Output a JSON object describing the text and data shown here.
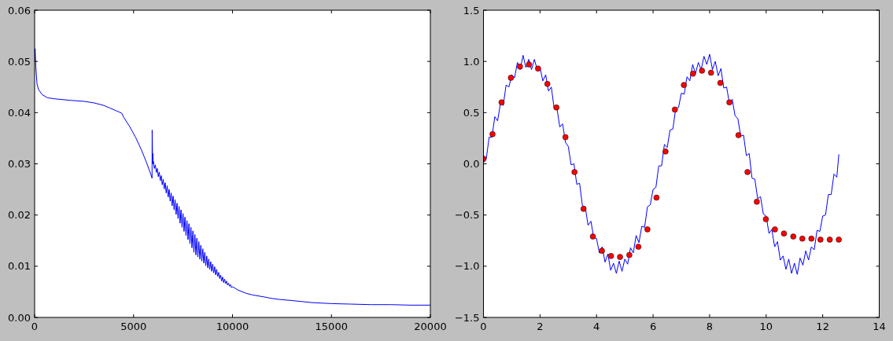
{
  "chart_data": [
    {
      "type": "line",
      "color": "#0000ff",
      "xlim": [
        0,
        20000
      ],
      "ylim": [
        0,
        0.06
      ],
      "xticks": [
        0,
        5000,
        10000,
        15000,
        20000
      ],
      "yticks": [
        {
          "value": 0,
          "label": "0.00"
        },
        {
          "value": 0.01,
          "label": "0.01"
        },
        {
          "value": 0.02,
          "label": "0.02"
        },
        {
          "value": 0.03,
          "label": "0.03"
        },
        {
          "value": 0.04,
          "label": "0.04"
        },
        {
          "value": 0.05,
          "label": "0.05"
        },
        {
          "value": 0.06,
          "label": "0.06"
        }
      ],
      "x": [
        0,
        25,
        60,
        120,
        200,
        385,
        650,
        1000,
        1800,
        2500,
        3000,
        3500,
        3800,
        4100,
        4400,
        4500,
        4800,
        5100,
        5400,
        5650,
        5850,
        5935,
        5940,
        5965,
        5975,
        5990,
        6000,
        6050,
        6100,
        6150,
        6200,
        6250,
        6300,
        6350,
        6400,
        6450,
        6500,
        6550,
        6600,
        6650,
        6700,
        6750,
        6800,
        6850,
        6900,
        6950,
        7000,
        7050,
        7100,
        7150,
        7200,
        7250,
        7300,
        7350,
        7400,
        7450,
        7500,
        7550,
        7600,
        7650,
        7700,
        7750,
        7800,
        7850,
        7900,
        7950,
        8000,
        8050,
        8100,
        8150,
        8200,
        8250,
        8300,
        8350,
        8400,
        8450,
        8500,
        8550,
        8600,
        8650,
        8700,
        8750,
        8800,
        8850,
        8900,
        8950,
        9000,
        9050,
        9100,
        9150,
        9200,
        9250,
        9300,
        9350,
        9400,
        9450,
        9500,
        9550,
        9600,
        9650,
        9700,
        9750,
        9800,
        9850,
        9900,
        9950,
        10000,
        10300,
        10700,
        11000,
        11600,
        12000,
        12400,
        13000,
        14000,
        15000,
        16000,
        17000,
        18000,
        19000,
        20000
      ],
      "values": [
        0.05,
        0.0525,
        0.049,
        0.0456,
        0.0445,
        0.0435,
        0.0429,
        0.0427,
        0.0424,
        0.0422,
        0.0419,
        0.0414,
        0.0409,
        0.0404,
        0.0399,
        0.0391,
        0.0373,
        0.0352,
        0.0327,
        0.0303,
        0.0282,
        0.0272,
        0.0366,
        0.03,
        0.032,
        0.03,
        0.0305,
        0.0291,
        0.0298,
        0.0283,
        0.0291,
        0.0275,
        0.0284,
        0.0267,
        0.0277,
        0.0259,
        0.027,
        0.0251,
        0.0263,
        0.0243,
        0.0257,
        0.0235,
        0.025,
        0.0227,
        0.0243,
        0.0218,
        0.0237,
        0.021,
        0.023,
        0.0201,
        0.0223,
        0.0193,
        0.0217,
        0.0184,
        0.021,
        0.0176,
        0.0203,
        0.0168,
        0.0196,
        0.016,
        0.0189,
        0.0152,
        0.0183,
        0.0144,
        0.0176,
        0.0136,
        0.0169,
        0.0127,
        0.0162,
        0.0122,
        0.0155,
        0.0118,
        0.0148,
        0.0114,
        0.0141,
        0.011,
        0.0134,
        0.0106,
        0.0127,
        0.0101,
        0.012,
        0.0097,
        0.0114,
        0.0094,
        0.0109,
        0.009,
        0.0104,
        0.0087,
        0.0099,
        0.0083,
        0.0094,
        0.008,
        0.0088,
        0.0076,
        0.0083,
        0.0071,
        0.0079,
        0.0068,
        0.0075,
        0.0066,
        0.0071,
        0.0063,
        0.0067,
        0.0061,
        0.0064,
        0.0058,
        0.006,
        0.0053,
        0.0047,
        0.0044,
        0.004,
        0.0037,
        0.0035,
        0.0033,
        0.0029,
        0.0027,
        0.0026,
        0.0025,
        0.0025,
        0.0024,
        0.0024
      ]
    },
    {
      "type": "line",
      "xlim": [
        0,
        14
      ],
      "ylim": [
        -1.5,
        1.5
      ],
      "xticks": [
        0,
        2,
        4,
        6,
        8,
        10,
        12,
        14
      ],
      "yticks": [
        {
          "value": -1.5,
          "label": "−1.5"
        },
        {
          "value": -1,
          "label": "−1.0"
        },
        {
          "value": -0.5,
          "label": "−0.5"
        },
        {
          "value": 0,
          "label": "0.0"
        },
        {
          "value": 0.5,
          "label": "0.5"
        },
        {
          "value": 1,
          "label": "1.0"
        },
        {
          "value": 1.5,
          "label": "1.5"
        }
      ],
      "series": [
        {
          "type": "line",
          "color": "#0000ff",
          "x": [
            0,
            0.1,
            0.2,
            0.3,
            0.4,
            0.5,
            0.6,
            0.7,
            0.8,
            0.9,
            1.0,
            1.1,
            1.2,
            1.3,
            1.4,
            1.5,
            1.6,
            1.7,
            1.8,
            1.9,
            2.0,
            2.1,
            2.2,
            2.3,
            2.4,
            2.5,
            2.6,
            2.7,
            2.8,
            2.9,
            3.0,
            3.1,
            3.2,
            3.3,
            3.4,
            3.5,
            3.6,
            3.7,
            3.8,
            3.9,
            4.0,
            4.1,
            4.2,
            4.3,
            4.4,
            4.5,
            4.6,
            4.7,
            4.8,
            4.9,
            5.0,
            5.1,
            5.2,
            5.3,
            5.4,
            5.5,
            5.6,
            5.7,
            5.8,
            5.9,
            6.0,
            6.1,
            6.2,
            6.3,
            6.4,
            6.5,
            6.6,
            6.7,
            6.8,
            6.9,
            7.0,
            7.1,
            7.2,
            7.3,
            7.4,
            7.5,
            7.6,
            7.7,
            7.8,
            7.9,
            8.0,
            8.1,
            8.2,
            8.3,
            8.4,
            8.5,
            8.6,
            8.7,
            8.8,
            8.9,
            9.0,
            9.1,
            9.2,
            9.3,
            9.4,
            9.5,
            9.6,
            9.7,
            9.8,
            9.9,
            10.0,
            10.1,
            10.2,
            10.3,
            10.4,
            10.5,
            10.6,
            10.7,
            10.8,
            10.9,
            11.0,
            11.1,
            11.2,
            11.3,
            11.4,
            11.5,
            11.6,
            11.7,
            11.8,
            11.9,
            12.0,
            12.1,
            12.2,
            12.3,
            12.4,
            12.5,
            12.57
          ],
          "values": [
            0.01,
            0.05,
            0.26,
            0.26,
            0.46,
            0.42,
            0.59,
            0.57,
            0.77,
            0.75,
            0.87,
            0.84,
            0.99,
            0.92,
            1.06,
            0.94,
            1.02,
            0.92,
            1.02,
            0.92,
            0.94,
            0.81,
            0.87,
            0.71,
            0.75,
            0.54,
            0.54,
            0.36,
            0.39,
            0.21,
            0.17,
            -0.01,
            0.0,
            -0.2,
            -0.19,
            -0.41,
            -0.42,
            -0.6,
            -0.56,
            -0.72,
            -0.73,
            -0.87,
            -0.81,
            -0.96,
            -0.88,
            -1.04,
            -0.97,
            -1.07,
            -0.95,
            -1.05,
            -0.93,
            -0.98,
            -0.82,
            -0.87,
            -0.7,
            -0.77,
            -0.61,
            -0.62,
            -0.42,
            -0.4,
            -0.25,
            -0.23,
            -0.02,
            -0.02,
            0.19,
            0.16,
            0.33,
            0.34,
            0.54,
            0.55,
            0.69,
            0.68,
            0.85,
            0.81,
            0.97,
            0.88,
            0.99,
            0.92,
            1.05,
            0.97,
            1.07,
            0.92,
            1.0,
            0.86,
            0.93,
            0.74,
            0.75,
            0.59,
            0.63,
            0.47,
            0.44,
            0.27,
            0.28,
            0.08,
            0.1,
            -0.14,
            -0.15,
            -0.34,
            -0.32,
            -0.49,
            -0.51,
            -0.68,
            -0.64,
            -0.81,
            -0.76,
            -0.94,
            -0.9,
            -1.03,
            -0.93,
            -1.07,
            -0.97,
            -1.08,
            -0.92,
            -0.99,
            -0.85,
            -0.94,
            -0.81,
            -0.84,
            -0.65,
            -0.66,
            -0.51,
            -0.5,
            -0.3,
            -0.3,
            -0.1,
            -0.13,
            0.09
          ]
        },
        {
          "type": "scatter",
          "color": "#ff0000",
          "marker": "circle",
          "x": [
            0.0,
            0.32,
            0.64,
            0.97,
            1.29,
            1.61,
            1.93,
            2.26,
            2.58,
            2.9,
            3.22,
            3.54,
            3.87,
            4.19,
            4.51,
            4.83,
            5.16,
            5.48,
            5.8,
            6.12,
            6.44,
            6.77,
            7.09,
            7.41,
            7.73,
            8.05,
            8.38,
            8.7,
            9.02,
            9.34,
            9.67,
            9.99,
            10.31,
            10.63,
            10.96,
            11.28,
            11.6,
            11.92,
            12.25,
            12.57
          ],
          "values": [
            0.05,
            0.29,
            0.6,
            0.84,
            0.95,
            0.97,
            0.93,
            0.78,
            0.55,
            0.26,
            -0.08,
            -0.44,
            -0.71,
            -0.85,
            -0.9,
            -0.91,
            -0.89,
            -0.81,
            -0.64,
            -0.33,
            0.12,
            0.53,
            0.77,
            0.88,
            0.91,
            0.89,
            0.79,
            0.6,
            0.28,
            -0.08,
            -0.37,
            -0.54,
            -0.64,
            -0.68,
            -0.71,
            -0.73,
            -0.73,
            -0.74,
            -0.74,
            -0.74
          ]
        }
      ]
    }
  ]
}
